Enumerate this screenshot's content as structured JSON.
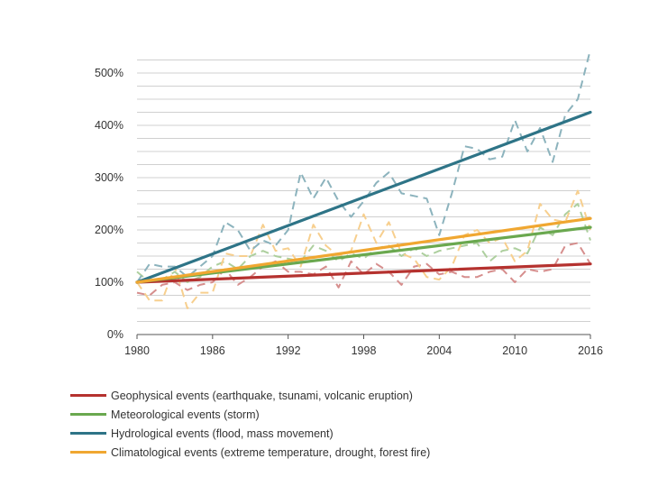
{
  "chart_data": {
    "type": "line",
    "xlabel": "",
    "ylabel": "",
    "xlim": [
      1980,
      2016
    ],
    "ylim": [
      0,
      550
    ],
    "x_ticks": [
      "1980",
      "1986",
      "1992",
      "1998",
      "2004",
      "2010",
      "2016"
    ],
    "x_tick_values": [
      1980,
      1986,
      1992,
      1998,
      2004,
      2010,
      2016
    ],
    "y_ticks": [
      "0%",
      "100%",
      "200%",
      "300%",
      "400%",
      "500%"
    ],
    "y_tick_values": [
      0,
      100,
      200,
      300,
      400,
      500
    ],
    "grid": true,
    "legend_position": "bottom-left",
    "series": [
      {
        "name": "Geophysical events (earthquake, tsunami, volcanic eruption)",
        "color": "#b5322f",
        "raw_x": [
          1980,
          1981,
          1982,
          1983,
          1984,
          1985,
          1986,
          1987,
          1988,
          1989,
          1990,
          1991,
          1992,
          1993,
          1994,
          1995,
          1996,
          1997,
          1998,
          1999,
          2000,
          2001,
          2002,
          2003,
          2004,
          2005,
          2006,
          2007,
          2008,
          2009,
          2010,
          2011,
          2012,
          2013,
          2014,
          2015,
          2016
        ],
        "raw_values": [
          80,
          75,
          95,
          100,
          85,
          95,
          100,
          125,
          95,
          110,
          130,
          140,
          120,
          120,
          115,
          130,
          90,
          140,
          115,
          135,
          120,
          95,
          130,
          135,
          115,
          120,
          110,
          110,
          120,
          125,
          100,
          125,
          120,
          125,
          170,
          175,
          135
        ],
        "trend": [
          100,
          135
        ]
      },
      {
        "name": "Meteorological events (storm)",
        "color": "#6aa84f",
        "raw_x": [
          1980,
          1981,
          1982,
          1983,
          1984,
          1985,
          1986,
          1987,
          1988,
          1989,
          1990,
          1991,
          1992,
          1993,
          1994,
          1995,
          1996,
          1997,
          1998,
          1999,
          2000,
          2001,
          2002,
          2003,
          2004,
          2005,
          2006,
          2007,
          2008,
          2009,
          2010,
          2011,
          2012,
          2013,
          2014,
          2015,
          2016
        ],
        "raw_values": [
          120,
          100,
          105,
          120,
          100,
          110,
          130,
          140,
          125,
          150,
          160,
          150,
          145,
          140,
          170,
          160,
          140,
          155,
          145,
          165,
          170,
          150,
          165,
          150,
          160,
          165,
          170,
          175,
          140,
          160,
          165,
          155,
          205,
          190,
          230,
          250,
          180
        ],
        "trend": [
          100,
          205
        ]
      },
      {
        "name": "Hydrological events (flood, mass movement)",
        "color": "#2e7487",
        "raw_x": [
          1980,
          1981,
          1982,
          1983,
          1984,
          1985,
          1986,
          1987,
          1988,
          1989,
          1990,
          1991,
          1992,
          1993,
          1994,
          1995,
          1996,
          1997,
          1998,
          1999,
          2000,
          2001,
          2002,
          2003,
          2004,
          2005,
          2006,
          2007,
          2008,
          2009,
          2010,
          2011,
          2012,
          2013,
          2014,
          2015,
          2016
        ],
        "raw_values": [
          100,
          135,
          130,
          130,
          110,
          130,
          150,
          215,
          200,
          160,
          180,
          170,
          200,
          310,
          260,
          300,
          255,
          225,
          255,
          290,
          310,
          270,
          265,
          260,
          190,
          270,
          360,
          355,
          335,
          340,
          410,
          350,
          395,
          330,
          420,
          450,
          545
        ],
        "trend": [
          100,
          425
        ]
      },
      {
        "name": "Climatological events (extreme temperature, drought, forest fire)",
        "color": "#f0a731",
        "raw_x": [
          1980,
          1981,
          1982,
          1983,
          1984,
          1985,
          1986,
          1987,
          1988,
          1989,
          1990,
          1991,
          1992,
          1993,
          1994,
          1995,
          1996,
          1997,
          1998,
          1999,
          2000,
          2001,
          2002,
          2003,
          2004,
          2005,
          2006,
          2007,
          2008,
          2009,
          2010,
          2011,
          2012,
          2013,
          2014,
          2015,
          2016
        ],
        "raw_values": [
          100,
          65,
          65,
          130,
          50,
          80,
          80,
          155,
          150,
          150,
          210,
          160,
          165,
          130,
          210,
          170,
          150,
          160,
          230,
          175,
          215,
          155,
          145,
          110,
          105,
          130,
          190,
          200,
          175,
          185,
          140,
          160,
          250,
          220,
          215,
          275,
          200
        ],
        "trend": [
          100,
          222
        ]
      }
    ]
  }
}
